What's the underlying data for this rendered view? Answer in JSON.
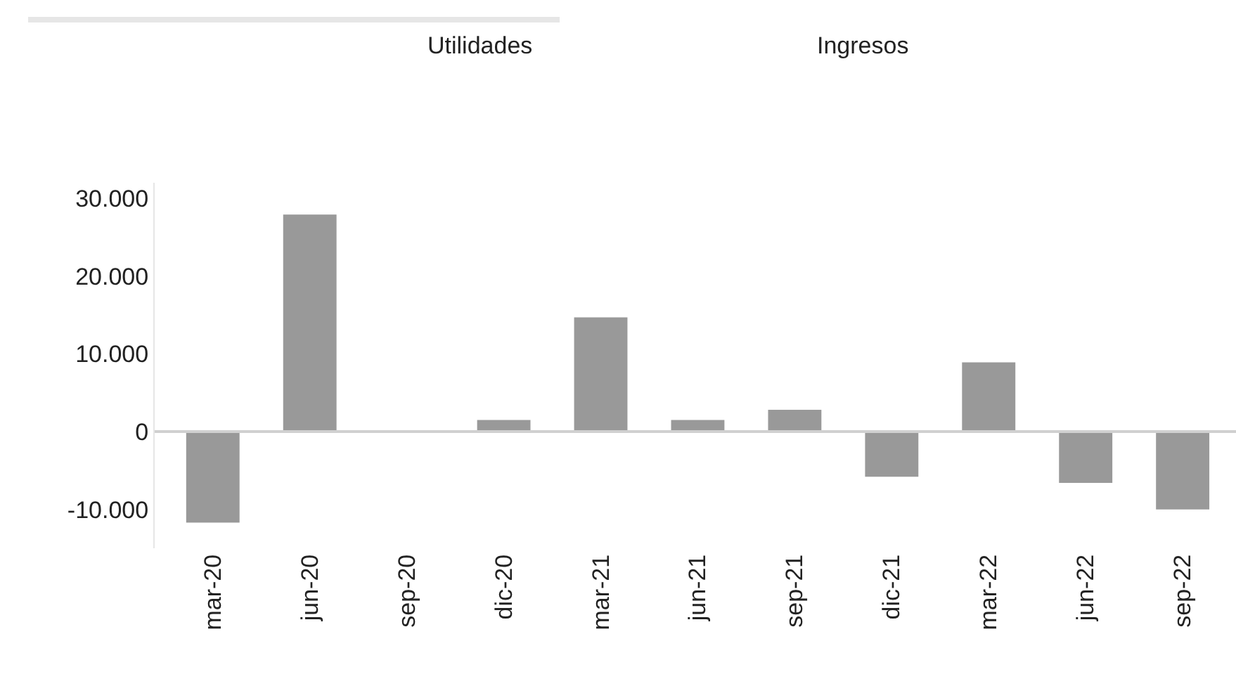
{
  "chart_data": {
    "type": "bar",
    "annotations": [
      "Utilidades",
      "Ingresos"
    ],
    "categories": [
      "mar-20",
      "jun-20",
      "sep-20",
      "dic-20",
      "mar-21",
      "jun-21",
      "sep-21",
      "dic-21",
      "mar-22",
      "jun-22",
      "sep-22"
    ],
    "values": [
      -11700,
      27900,
      0,
      1500,
      14700,
      1500,
      2800,
      -5800,
      8900,
      -6600,
      -10000
    ],
    "color": "#999999",
    "ylim": [
      -15000,
      32000
    ],
    "ref_lines": [
      {
        "axis": "y",
        "value": 0,
        "color": "#d0d0d0"
      }
    ],
    "yticks": [
      {
        "value": -10000,
        "label": "-10.000"
      },
      0,
      {
        "value": 10000,
        "label": "10.000"
      },
      {
        "value": 20000,
        "label": "20.000"
      },
      {
        "value": 30000,
        "label": "30.000"
      }
    ],
    "grid": false,
    "legend": false
  }
}
